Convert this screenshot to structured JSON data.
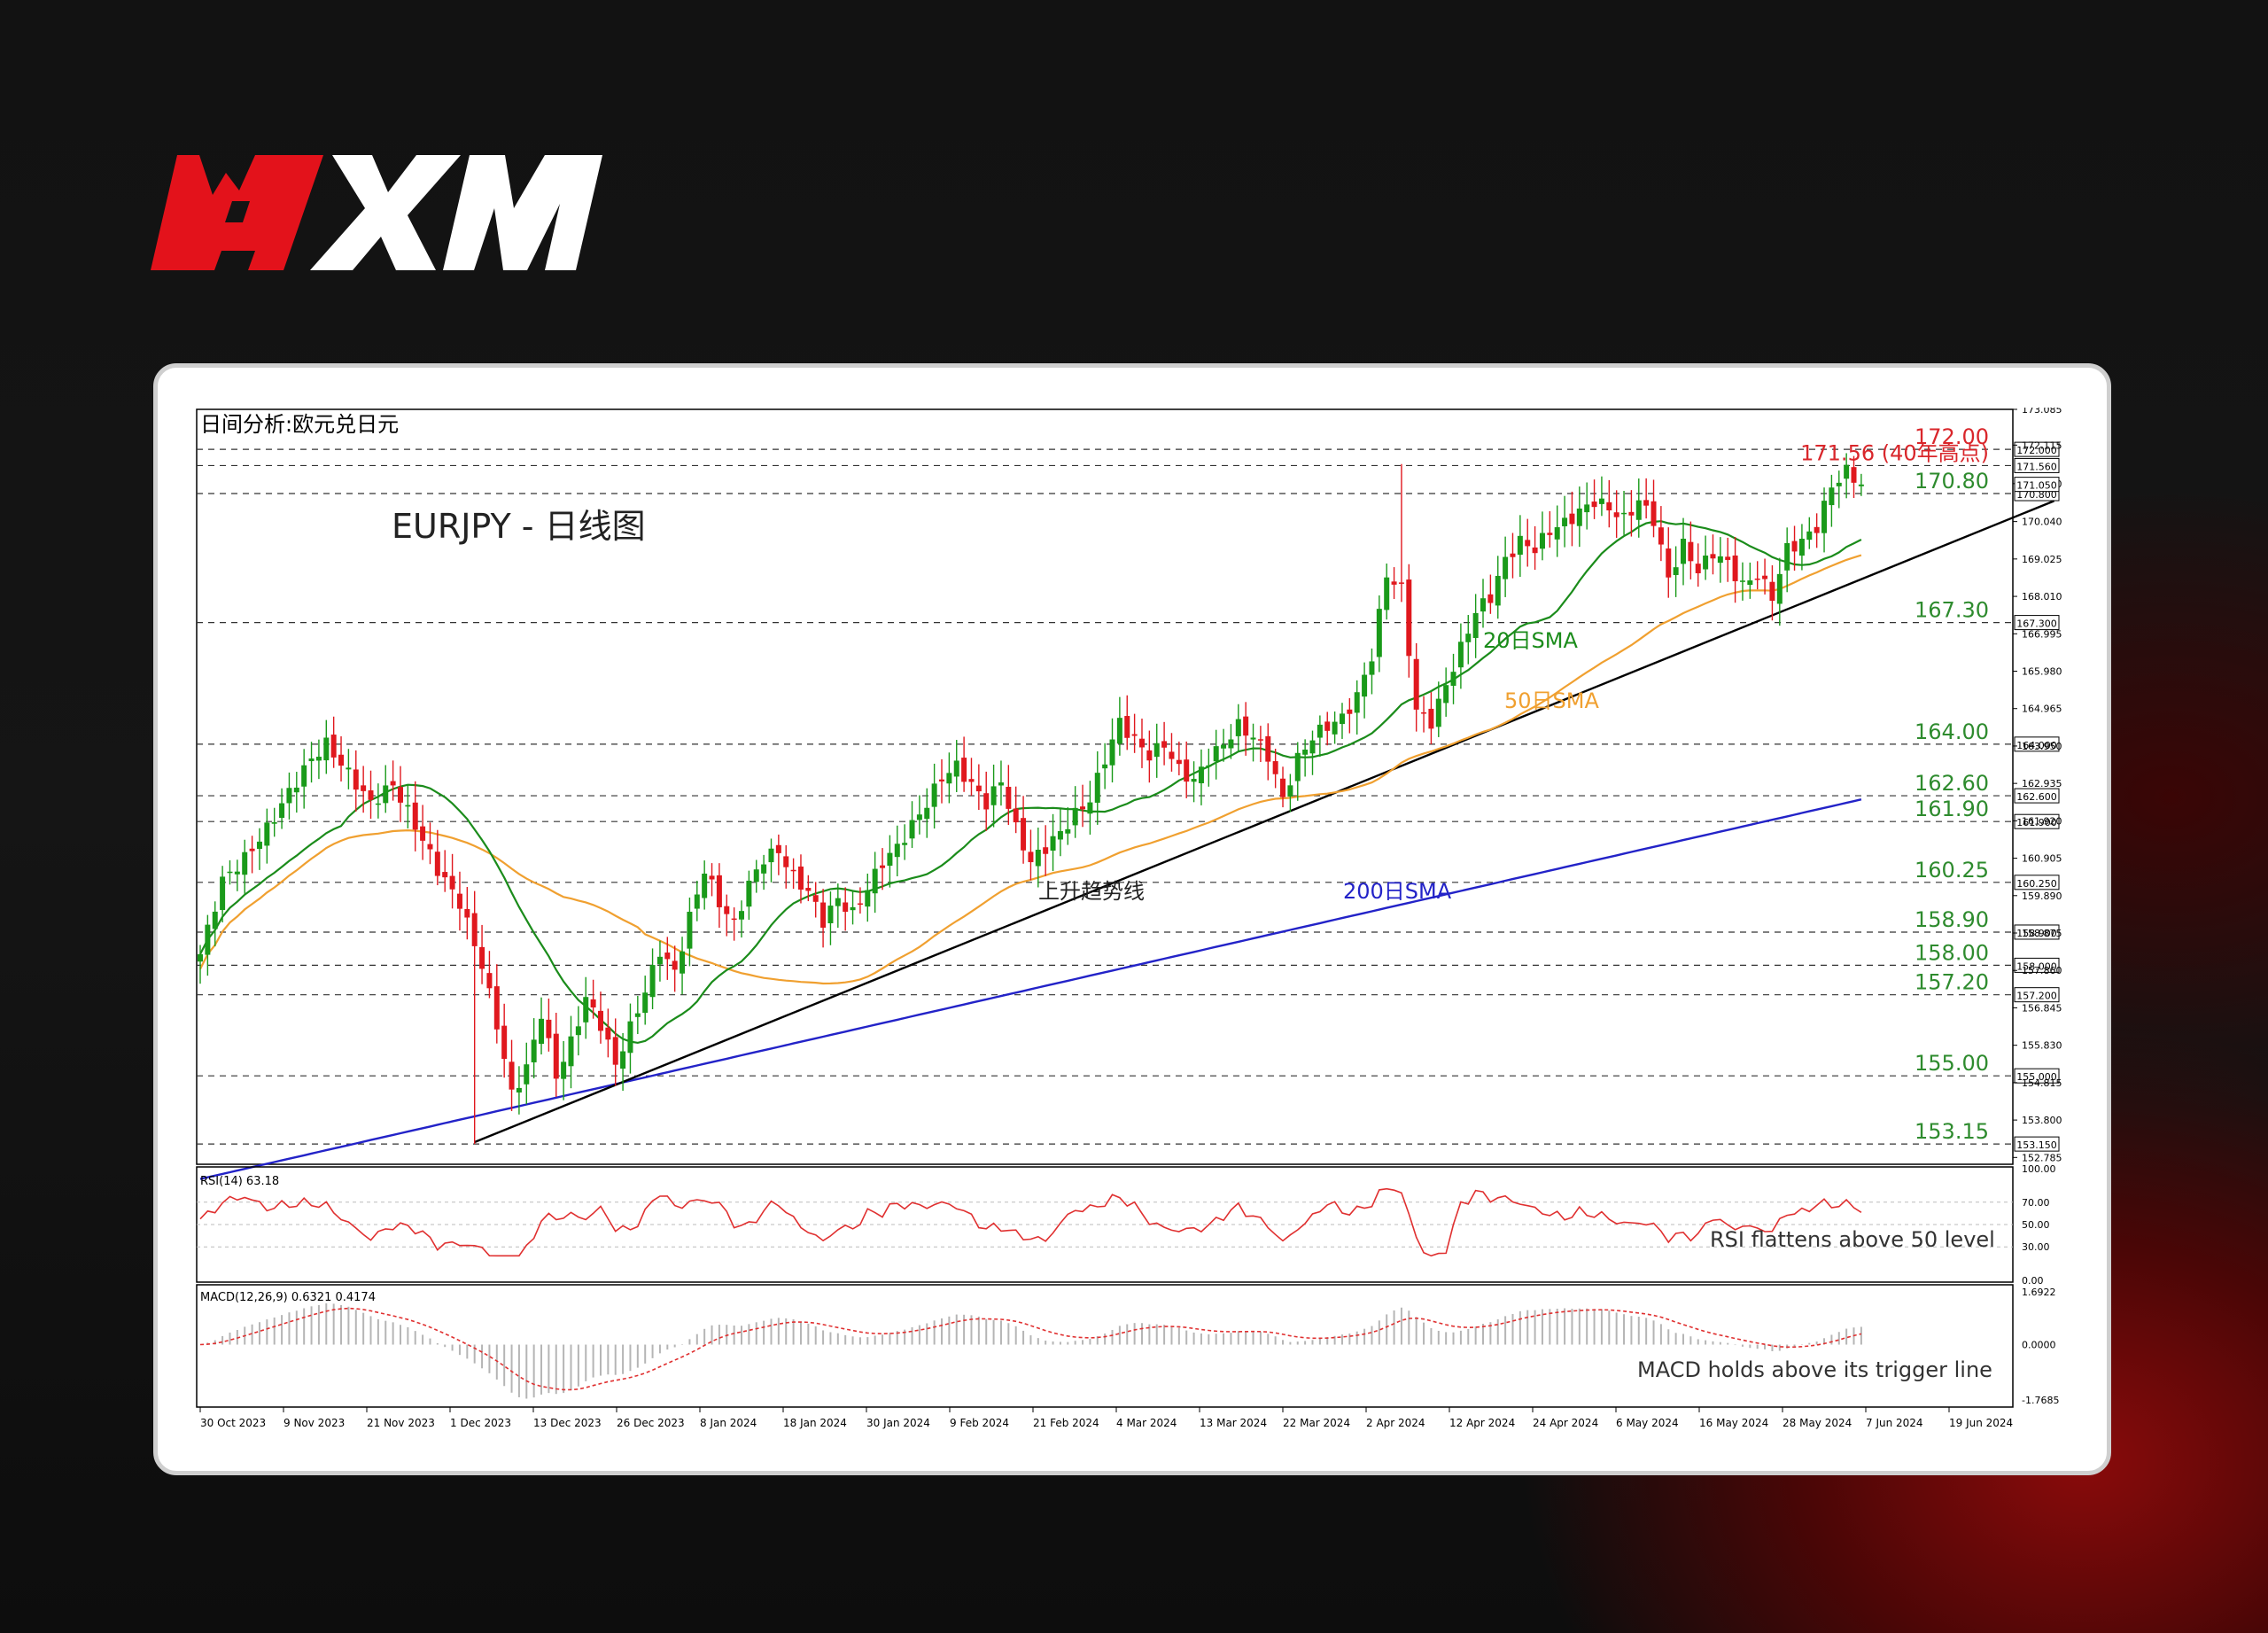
{
  "brand": {
    "logo_text": "XM",
    "primary_color": "#e3121b",
    "secondary_color": "#ffffff"
  },
  "chart_data": {
    "type": "candlestick",
    "window_title": "日间分析:欧元兑日元",
    "title": "EURJPY - 日线图",
    "ylim": [
      152.6,
      173.085
    ],
    "y_ticks": [
      173.085,
      172.115,
      171.07,
      170.04,
      169.025,
      168.01,
      166.995,
      165.98,
      164.965,
      163.95,
      162.935,
      161.92,
      160.905,
      159.89,
      158.875,
      157.86,
      156.845,
      155.83,
      154.815,
      153.8,
      152.785
    ],
    "x_ticks": [
      "30 Oct 2023",
      "9 Nov 2023",
      "21 Nov 2023",
      "1 Dec 2023",
      "13 Dec 2023",
      "26 Dec 2023",
      "8 Jan 2024",
      "18 Jan 2024",
      "30 Jan 2024",
      "9 Feb 2024",
      "21 Feb 2024",
      "4 Mar 2024",
      "13 Mar 2024",
      "22 Mar 2024",
      "2 Apr 2024",
      "12 Apr 2024",
      "24 Apr 2024",
      "6 May 2024",
      "16 May 2024",
      "28 May 2024",
      "7 Jun 2024",
      "19 Jun 2024"
    ],
    "key_levels": [
      {
        "value": 172.0,
        "label": "172.00",
        "box": "172.000",
        "color": "#d9262b"
      },
      {
        "value": 171.56,
        "label": "171.56 (40年高点)",
        "box": "171.560",
        "color": "#d9262b"
      },
      {
        "value": 170.8,
        "label": "170.80",
        "box": "170.800",
        "color": "#2e8b2e"
      },
      {
        "value": 167.3,
        "label": "167.30",
        "box": "167.300",
        "color": "#2e8b2e"
      },
      {
        "value": 164.0,
        "label": "164.00",
        "box": "164.000",
        "color": "#2e8b2e"
      },
      {
        "value": 162.6,
        "label": "162.60",
        "box": "162.600",
        "color": "#2e8b2e"
      },
      {
        "value": 161.9,
        "label": "161.90",
        "box": "161.900",
        "color": "#2e8b2e"
      },
      {
        "value": 160.25,
        "label": "160.25",
        "box": "160.250",
        "color": "#2e8b2e"
      },
      {
        "value": 158.9,
        "label": "158.90",
        "box": "158.900",
        "color": "#2e8b2e"
      },
      {
        "value": 158.0,
        "label": "158.00",
        "box": "158.000",
        "color": "#2e8b2e"
      },
      {
        "value": 157.2,
        "label": "157.20",
        "box": "157.200",
        "color": "#2e8b2e"
      },
      {
        "value": 155.0,
        "label": "155.00",
        "box": "155.000",
        "color": "#2e8b2e"
      },
      {
        "value": 153.15,
        "label": "153.15",
        "box": "153.150",
        "color": "#2e8b2e"
      }
    ],
    "current_price_box": "171.050",
    "close_anchors": [
      [
        0,
        158.3
      ],
      [
        3,
        160.3
      ],
      [
        6,
        160.9
      ],
      [
        9,
        161.7
      ],
      [
        12,
        162.7
      ],
      [
        15,
        163.6
      ],
      [
        17,
        164.0
      ],
      [
        20,
        163.2
      ],
      [
        23,
        162.4
      ],
      [
        26,
        162.9
      ],
      [
        29,
        161.8
      ],
      [
        32,
        160.6
      ],
      [
        35,
        159.7
      ],
      [
        38,
        158.0
      ],
      [
        40,
        156.4
      ],
      [
        42,
        154.5
      ],
      [
        44,
        155.2
      ],
      [
        46,
        156.7
      ],
      [
        48,
        155.0
      ],
      [
        50,
        155.9
      ],
      [
        52,
        157.1
      ],
      [
        54,
        156.4
      ],
      [
        56,
        155.3
      ],
      [
        58,
        156.3
      ],
      [
        60,
        157.3
      ],
      [
        62,
        158.4
      ],
      [
        64,
        157.8
      ],
      [
        66,
        159.3
      ],
      [
        68,
        160.6
      ],
      [
        70,
        159.7
      ],
      [
        72,
        159.1
      ],
      [
        74,
        160.2
      ],
      [
        76,
        160.9
      ],
      [
        78,
        161.1
      ],
      [
        80,
        160.4
      ],
      [
        82,
        160.0
      ],
      [
        84,
        159.2
      ],
      [
        86,
        159.8
      ],
      [
        88,
        159.4
      ],
      [
        90,
        160.1
      ],
      [
        92,
        160.8
      ],
      [
        94,
        161.2
      ],
      [
        96,
        161.8
      ],
      [
        98,
        162.4
      ],
      [
        100,
        163.1
      ],
      [
        102,
        163.4
      ],
      [
        104,
        162.9
      ],
      [
        106,
        162.4
      ],
      [
        108,
        163.0
      ],
      [
        110,
        161.7
      ],
      [
        112,
        160.8
      ],
      [
        114,
        161.2
      ],
      [
        116,
        161.6
      ],
      [
        118,
        162.1
      ],
      [
        120,
        162.5
      ],
      [
        122,
        163.6
      ],
      [
        124,
        164.6
      ],
      [
        126,
        164.1
      ],
      [
        128,
        163.7
      ],
      [
        130,
        164.0
      ],
      [
        132,
        163.3
      ],
      [
        134,
        163.0
      ],
      [
        136,
        163.6
      ],
      [
        138,
        164.0
      ],
      [
        140,
        164.5
      ],
      [
        142,
        164.2
      ],
      [
        144,
        163.7
      ],
      [
        146,
        162.5
      ],
      [
        148,
        163.6
      ],
      [
        150,
        164.2
      ],
      [
        152,
        164.5
      ],
      [
        154,
        164.7
      ],
      [
        156,
        165.3
      ],
      [
        158,
        166.4
      ],
      [
        160,
        168.6
      ],
      [
        162,
        168.2
      ],
      [
        164,
        164.9
      ],
      [
        166,
        164.6
      ],
      [
        168,
        165.6
      ],
      [
        170,
        166.6
      ],
      [
        172,
        167.6
      ],
      [
        174,
        168.0
      ],
      [
        176,
        169.0
      ],
      [
        178,
        169.5
      ],
      [
        180,
        169.3
      ],
      [
        182,
        169.8
      ],
      [
        184,
        170.0
      ],
      [
        186,
        170.3
      ],
      [
        188,
        170.6
      ],
      [
        190,
        170.4
      ],
      [
        192,
        170.1
      ],
      [
        194,
        170.6
      ],
      [
        196,
        170.1
      ],
      [
        198,
        168.5
      ],
      [
        200,
        169.4
      ],
      [
        202,
        168.7
      ],
      [
        204,
        169.2
      ],
      [
        206,
        168.9
      ],
      [
        208,
        168.3
      ],
      [
        210,
        168.6
      ],
      [
        212,
        168.0
      ],
      [
        214,
        169.3
      ],
      [
        216,
        169.5
      ],
      [
        218,
        169.9
      ],
      [
        220,
        171.0
      ],
      [
        222,
        171.4
      ],
      [
        224,
        171.05
      ]
    ],
    "bar_count": 225,
    "sma20": {
      "label": "20日SMA",
      "color": "#1b8c1b"
    },
    "sma50": {
      "label": "50日SMA",
      "color": "#f0a030"
    },
    "sma200": {
      "label": "200日SMA",
      "color": "#2323c8",
      "start": 152.2,
      "end": 162.5
    },
    "trendline": {
      "label": "上升趋势线",
      "color": "#000000",
      "start": {
        "bar": 37,
        "value": 153.2
      },
      "end": {
        "bar": 250,
        "value": 170.6
      }
    },
    "rsi": {
      "label": "RSI(14) 63.18",
      "levels": [
        100.0,
        70.0,
        50.0,
        30.0,
        0.0
      ],
      "level_labels": [
        "100.00",
        "70.00",
        "50.00",
        "30.00",
        "0.00"
      ],
      "annotation": "RSI flattens above 50 level"
    },
    "macd": {
      "label": "MACD(12,26,9) 0.6321 0.4174",
      "axis_labels": [
        "1.6922",
        "0.0000",
        "-1.7685"
      ],
      "annotation": "MACD holds above its trigger line"
    }
  }
}
